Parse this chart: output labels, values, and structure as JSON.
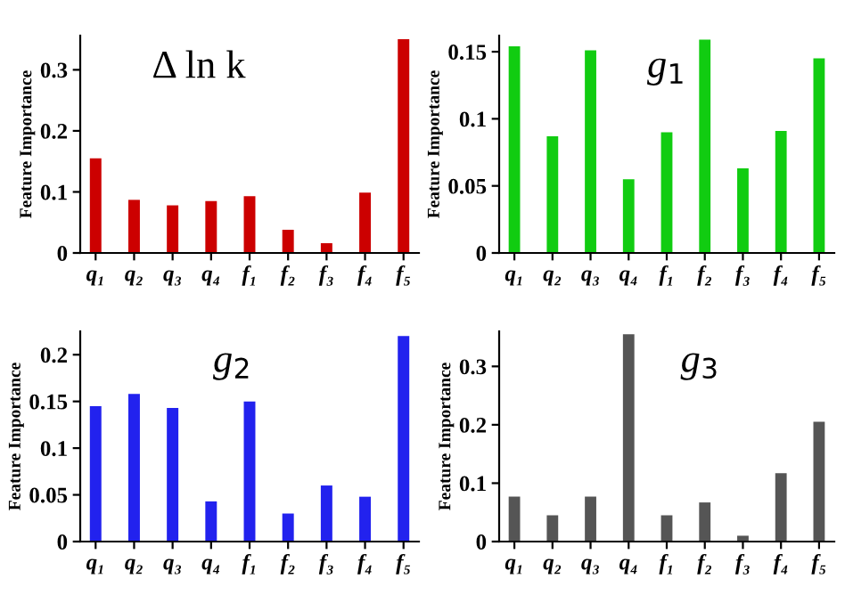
{
  "chart_data": [
    {
      "type": "bar",
      "title": "Δ ln k",
      "ylabel": "Feature Importance",
      "categories": [
        "q₁",
        "q₂",
        "q₃",
        "q₄",
        "f₁",
        "f₂",
        "f₃",
        "f₄",
        "f₅"
      ],
      "color": "#cc0000",
      "values": [
        0.155,
        0.087,
        0.078,
        0.085,
        0.093,
        0.038,
        0.016,
        0.099,
        0.35
      ],
      "ylim": [
        0,
        0.356
      ],
      "yticks": [
        0,
        0.1,
        0.2,
        0.3
      ],
      "grid": false,
      "legend": false
    },
    {
      "type": "bar",
      "title": "g$_{1}$",
      "ylabel": "Feature Importance",
      "categories": [
        "q₁",
        "q₂",
        "q₃",
        "q₄",
        "f₁",
        "f₂",
        "f₃",
        "f₄",
        "f₅"
      ],
      "color": "#11cc11",
      "values": [
        0.154,
        0.087,
        0.151,
        0.055,
        0.09,
        0.159,
        0.063,
        0.091,
        0.145
      ],
      "ylim": [
        0,
        0.162
      ],
      "yticks": [
        0,
        0.05,
        0.1,
        0.15
      ],
      "grid": false,
      "legend": false
    },
    {
      "type": "bar",
      "title": "g$_{2}$",
      "ylabel": "Feature Importance",
      "categories": [
        "q₁",
        "q₂",
        "q₃",
        "q₄",
        "f₁",
        "f₂",
        "f₃",
        "f₄",
        "f₅"
      ],
      "color": "#2222ee",
      "values": [
        0.145,
        0.158,
        0.143,
        0.043,
        0.15,
        0.03,
        0.06,
        0.048,
        0.22
      ],
      "ylim": [
        0,
        0.225
      ],
      "yticks": [
        0,
        0.05,
        0.1,
        0.15,
        0.2
      ],
      "grid": false,
      "legend": false
    },
    {
      "type": "bar",
      "title": "g$_{3}$",
      "ylabel": "Feature Importance",
      "categories": [
        "q₁",
        "q₂",
        "q₃",
        "q₄",
        "f₁",
        "f₂",
        "f₃",
        "f₄",
        "f₅"
      ],
      "color": "#555555",
      "values": [
        0.077,
        0.045,
        0.077,
        0.355,
        0.045,
        0.067,
        0.01,
        0.117,
        0.205
      ],
      "ylim": [
        0,
        0.36
      ],
      "yticks": [
        0,
        0.1,
        0.2,
        0.3
      ],
      "grid": false,
      "legend": false
    }
  ]
}
